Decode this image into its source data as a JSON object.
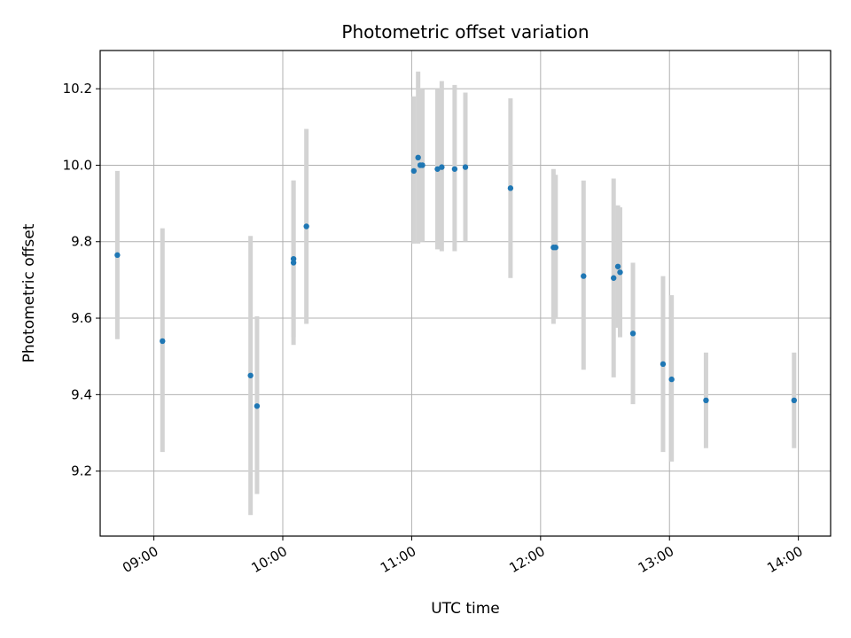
{
  "chart_data": {
    "type": "scatter",
    "title": "Photometric offset variation",
    "xlabel": "UTC time",
    "ylabel": "Photometric offset",
    "x_ticks": [
      "09:00",
      "10:00",
      "11:00",
      "12:00",
      "13:00",
      "14:00"
    ],
    "y_ticks": [
      "9.2",
      "9.4",
      "9.6",
      "9.8",
      "10.0",
      "10.2"
    ],
    "xlim": [
      "08:35",
      "14:15"
    ],
    "ylim": [
      9.03,
      10.3
    ],
    "grid": true,
    "colors": {
      "point": "#1f77b4",
      "errorbar": "#d3d3d3",
      "grid": "#b0b0b0"
    },
    "points": [
      {
        "t": "08:43",
        "y": 9.765,
        "lo": 9.545,
        "hi": 9.985
      },
      {
        "t": "09:04",
        "y": 9.54,
        "lo": 9.25,
        "hi": 9.835
      },
      {
        "t": "09:45",
        "y": 9.45,
        "lo": 9.085,
        "hi": 9.815
      },
      {
        "t": "09:48",
        "y": 9.37,
        "lo": 9.14,
        "hi": 9.605
      },
      {
        "t": "10:05",
        "y": 9.745,
        "lo": 9.53,
        "hi": 9.96
      },
      {
        "t": "10:05",
        "y": 9.755,
        "lo": 9.55,
        "hi": 9.96
      },
      {
        "t": "10:11",
        "y": 9.84,
        "lo": 9.585,
        "hi": 10.095
      },
      {
        "t": "11:01",
        "y": 9.985,
        "lo": 9.795,
        "hi": 10.18
      },
      {
        "t": "11:03",
        "y": 10.02,
        "lo": 9.795,
        "hi": 10.245
      },
      {
        "t": "11:04",
        "y": 10.0,
        "lo": 9.8,
        "hi": 10.2
      },
      {
        "t": "11:05",
        "y": 10.0,
        "lo": 9.8,
        "hi": 10.2
      },
      {
        "t": "11:12",
        "y": 9.99,
        "lo": 9.78,
        "hi": 10.2
      },
      {
        "t": "11:14",
        "y": 9.995,
        "lo": 9.775,
        "hi": 10.22
      },
      {
        "t": "11:20",
        "y": 9.99,
        "lo": 9.775,
        "hi": 10.21
      },
      {
        "t": "11:25",
        "y": 9.995,
        "lo": 9.8,
        "hi": 10.19
      },
      {
        "t": "11:46",
        "y": 9.94,
        "lo": 9.705,
        "hi": 10.175
      },
      {
        "t": "12:06",
        "y": 9.785,
        "lo": 9.585,
        "hi": 9.99
      },
      {
        "t": "12:07",
        "y": 9.785,
        "lo": 9.6,
        "hi": 9.975
      },
      {
        "t": "12:20",
        "y": 9.71,
        "lo": 9.465,
        "hi": 9.96
      },
      {
        "t": "12:34",
        "y": 9.705,
        "lo": 9.445,
        "hi": 9.965
      },
      {
        "t": "12:36",
        "y": 9.735,
        "lo": 9.575,
        "hi": 9.895
      },
      {
        "t": "12:37",
        "y": 9.72,
        "lo": 9.55,
        "hi": 9.89
      },
      {
        "t": "12:43",
        "y": 9.56,
        "lo": 9.375,
        "hi": 9.745
      },
      {
        "t": "12:57",
        "y": 9.48,
        "lo": 9.25,
        "hi": 9.71
      },
      {
        "t": "13:01",
        "y": 9.44,
        "lo": 9.225,
        "hi": 9.66
      },
      {
        "t": "13:17",
        "y": 9.385,
        "lo": 9.26,
        "hi": 9.51
      },
      {
        "t": "13:58",
        "y": 9.385,
        "lo": 9.26,
        "hi": 9.51
      }
    ]
  }
}
